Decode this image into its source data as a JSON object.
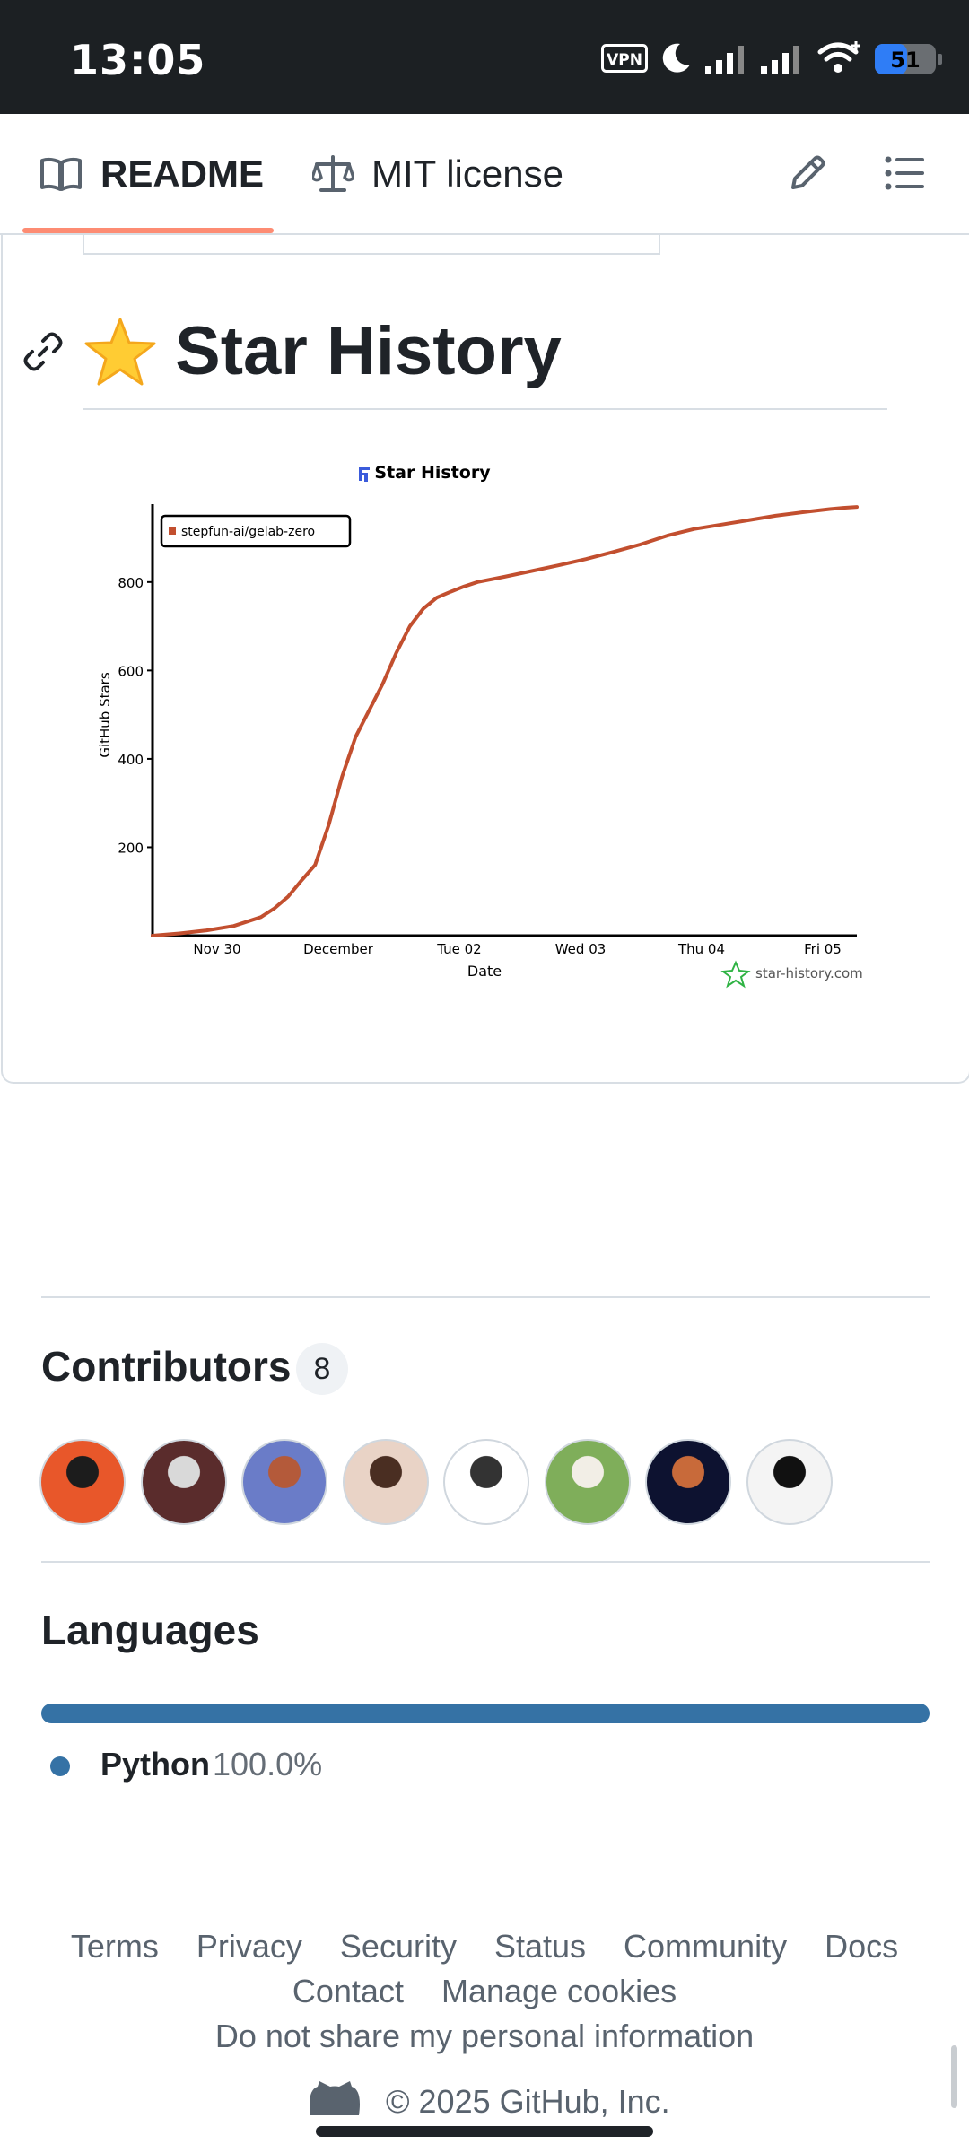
{
  "status_bar": {
    "time": "13:05",
    "vpn_label": "VPN",
    "battery_level": "51",
    "icons": [
      "vpn-icon",
      "moon-icon",
      "signal-icon",
      "signal-icon",
      "wifi-icon",
      "battery-icon"
    ]
  },
  "tabs": [
    {
      "label": "README",
      "icon": "book-icon",
      "active": true
    },
    {
      "label": "MIT license",
      "icon": "scale-icon",
      "active": false
    }
  ],
  "toolbar_icons": [
    "pencil-icon",
    "list-icon"
  ],
  "readme": {
    "heading_emoji": "⭐",
    "heading": "Star History"
  },
  "chart_data": {
    "type": "line",
    "title": "Star History",
    "xlabel": "Date",
    "ylabel": "GitHub Stars",
    "x_ticks": [
      "Nov 30",
      "December",
      "Tue 02",
      "Wed 03",
      "Thu 04",
      "Fri 05"
    ],
    "y_ticks": [
      200,
      400,
      600,
      800
    ],
    "ylim": [
      0,
      960
    ],
    "legend_position": "top-left",
    "watermark": "star-history.com",
    "series": [
      {
        "name": "stepfun-ai/gelab-zero",
        "color": "#c24f2f",
        "x": [
          0,
          0.2,
          0.4,
          0.6,
          0.8,
          0.9,
          1.0,
          1.1,
          1.2,
          1.3,
          1.4,
          1.5,
          1.6,
          1.7,
          1.8,
          1.9,
          2.0,
          2.1,
          2.2,
          2.3,
          2.4,
          2.6,
          2.8,
          3.0,
          3.2,
          3.4,
          3.6,
          3.8,
          4.0,
          4.2,
          4.4,
          4.6,
          4.8,
          5.0,
          5.1,
          5.2
        ],
        "y": [
          0,
          5,
          12,
          22,
          42,
          62,
          88,
          125,
          160,
          250,
          360,
          450,
          510,
          570,
          640,
          700,
          740,
          765,
          778,
          790,
          800,
          812,
          825,
          838,
          852,
          868,
          885,
          905,
          920,
          930,
          940,
          950,
          958,
          965,
          968,
          970
        ]
      }
    ]
  },
  "contributors": {
    "title": "Contributors",
    "count": "8",
    "avatars": [
      {
        "name": "avatar-witch",
        "colors": [
          "#e8572a",
          "#1c1c1c"
        ]
      },
      {
        "name": "avatar-person",
        "colors": [
          "#5a2c2c",
          "#d9d9d9"
        ]
      },
      {
        "name": "avatar-dragon",
        "colors": [
          "#6a7cc8",
          "#b45a3a"
        ]
      },
      {
        "name": "avatar-girl",
        "colors": [
          "#e9d3c6",
          "#4a2e22"
        ]
      },
      {
        "name": "avatar-cartoon",
        "colors": [
          "#ffffff",
          "#333333"
        ]
      },
      {
        "name": "avatar-dog",
        "colors": [
          "#7fae5a",
          "#f2eee6"
        ]
      },
      {
        "name": "avatar-space",
        "colors": [
          "#0d1230",
          "#c86a3a"
        ]
      },
      {
        "name": "avatar-penguin",
        "colors": [
          "#f4f4f4",
          "#111111"
        ]
      }
    ]
  },
  "languages": {
    "title": "Languages",
    "items": [
      {
        "name": "Python",
        "percent": "100.0%",
        "share": 1.0,
        "color": "#3572A5"
      }
    ]
  },
  "footer": {
    "links_row1": [
      "Terms",
      "Privacy",
      "Security",
      "Status",
      "Community",
      "Docs"
    ],
    "links_row2": [
      "Contact",
      "Manage cookies"
    ],
    "links_row3": [
      "Do not share my personal information"
    ],
    "copyright": "© 2025 GitHub, Inc."
  }
}
